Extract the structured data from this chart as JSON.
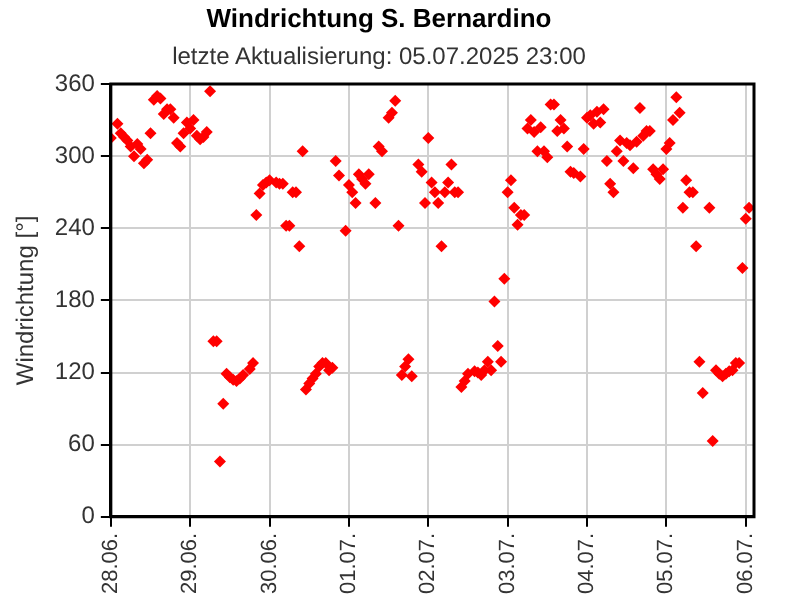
{
  "chart_data": {
    "type": "scatter",
    "title": "Windrichtung S. Bernardino",
    "subtitle": "letzte Aktualisierung: 05.07.2025 23:00",
    "ylabel": "Windrichtung [°]",
    "color": "#ff0000",
    "marker": "diamond",
    "grid": true,
    "x": [
      "2025-06-28T00:00",
      "2025-06-28T02:00",
      "2025-06-28T03:00",
      "2025-06-28T04:00",
      "2025-06-28T05:00",
      "2025-06-28T06:00",
      "2025-06-28T07:00",
      "2025-06-28T08:00",
      "2025-06-28T09:00",
      "2025-06-28T10:00",
      "2025-06-28T11:00",
      "2025-06-28T12:00",
      "2025-06-28T13:00",
      "2025-06-28T14:00",
      "2025-06-28T15:00",
      "2025-06-28T16:00",
      "2025-06-28T17:00",
      "2025-06-28T18:00",
      "2025-06-28T19:00",
      "2025-06-28T20:00",
      "2025-06-28T21:00",
      "2025-06-28T22:00",
      "2025-06-28T23:00",
      "2025-06-29T00:00",
      "2025-06-29T01:00",
      "2025-06-29T02:00",
      "2025-06-29T03:00",
      "2025-06-29T04:00",
      "2025-06-29T05:00",
      "2025-06-29T06:00",
      "2025-06-29T07:00",
      "2025-06-29T08:00",
      "2025-06-29T09:00",
      "2025-06-29T10:00",
      "2025-06-29T11:00",
      "2025-06-29T12:00",
      "2025-06-29T13:00",
      "2025-06-29T14:00",
      "2025-06-29T15:00",
      "2025-06-29T16:00",
      "2025-06-29T18:00",
      "2025-06-29T19:00",
      "2025-06-29T20:00",
      "2025-06-29T21:00",
      "2025-06-29T22:00",
      "2025-06-29T23:00",
      "2025-06-30T00:00",
      "2025-06-30T02:00",
      "2025-06-30T03:00",
      "2025-06-30T04:00",
      "2025-06-30T05:00",
      "2025-06-30T06:00",
      "2025-06-30T07:00",
      "2025-06-30T08:00",
      "2025-06-30T09:00",
      "2025-06-30T10:00",
      "2025-06-30T11:00",
      "2025-06-30T12:00",
      "2025-06-30T13:00",
      "2025-06-30T14:00",
      "2025-06-30T15:00",
      "2025-06-30T16:00",
      "2025-06-30T17:00",
      "2025-06-30T18:00",
      "2025-06-30T19:00",
      "2025-06-30T20:00",
      "2025-06-30T21:00",
      "2025-06-30T23:00",
      "2025-07-01T00:00",
      "2025-07-01T01:00",
      "2025-07-01T02:00",
      "2025-07-01T03:00",
      "2025-07-01T04:00",
      "2025-07-01T05:00",
      "2025-07-01T06:00",
      "2025-07-01T08:00",
      "2025-07-01T09:00",
      "2025-07-01T10:00",
      "2025-07-01T12:00",
      "2025-07-01T13:00",
      "2025-07-01T14:00",
      "2025-07-01T15:00",
      "2025-07-01T16:00",
      "2025-07-01T17:00",
      "2025-07-01T18:00",
      "2025-07-01T19:00",
      "2025-07-01T21:00",
      "2025-07-01T22:00",
      "2025-07-01T23:00",
      "2025-07-02T00:00",
      "2025-07-02T01:00",
      "2025-07-02T02:00",
      "2025-07-02T03:00",
      "2025-07-02T04:00",
      "2025-07-02T05:00",
      "2025-07-02T06:00",
      "2025-07-02T07:00",
      "2025-07-02T08:00",
      "2025-07-02T09:00",
      "2025-07-02T10:00",
      "2025-07-02T11:00",
      "2025-07-02T12:00",
      "2025-07-02T14:00",
      "2025-07-02T15:00",
      "2025-07-02T16:00",
      "2025-07-02T17:00",
      "2025-07-02T18:00",
      "2025-07-02T19:00",
      "2025-07-02T20:00",
      "2025-07-02T21:00",
      "2025-07-02T22:00",
      "2025-07-02T23:00",
      "2025-07-03T00:00",
      "2025-07-03T01:00",
      "2025-07-03T02:00",
      "2025-07-03T03:00",
      "2025-07-03T04:00",
      "2025-07-03T05:00",
      "2025-07-03T06:00",
      "2025-07-03T07:00",
      "2025-07-03T08:00",
      "2025-07-03T09:00",
      "2025-07-03T10:00",
      "2025-07-03T11:00",
      "2025-07-03T12:00",
      "2025-07-03T13:00",
      "2025-07-03T14:00",
      "2025-07-03T15:00",
      "2025-07-03T16:00",
      "2025-07-03T17:00",
      "2025-07-03T18:00",
      "2025-07-03T19:00",
      "2025-07-03T20:00",
      "2025-07-03T22:00",
      "2025-07-03T23:00",
      "2025-07-04T00:00",
      "2025-07-04T01:00",
      "2025-07-04T02:00",
      "2025-07-04T03:00",
      "2025-07-04T04:00",
      "2025-07-04T05:00",
      "2025-07-04T06:00",
      "2025-07-04T07:00",
      "2025-07-04T08:00",
      "2025-07-04T09:00",
      "2025-07-04T10:00",
      "2025-07-04T11:00",
      "2025-07-04T12:00",
      "2025-07-04T13:00",
      "2025-07-04T14:00",
      "2025-07-04T15:00",
      "2025-07-04T16:00",
      "2025-07-04T17:00",
      "2025-07-04T18:00",
      "2025-07-04T19:00",
      "2025-07-04T20:00",
      "2025-07-04T21:00",
      "2025-07-04T22:00",
      "2025-07-04T23:00",
      "2025-07-05T00:00",
      "2025-07-05T01:00",
      "2025-07-05T02:00",
      "2025-07-05T03:00",
      "2025-07-05T04:00",
      "2025-07-05T05:00",
      "2025-07-05T06:00",
      "2025-07-05T07:00",
      "2025-07-05T08:00",
      "2025-07-05T09:00",
      "2025-07-05T10:00",
      "2025-07-05T11:00",
      "2025-07-05T13:00",
      "2025-07-05T14:00",
      "2025-07-05T15:00",
      "2025-07-05T16:00",
      "2025-07-05T17:00",
      "2025-07-05T18:00",
      "2025-07-05T19:00",
      "2025-07-05T20:00",
      "2025-07-05T21:00",
      "2025-07-05T22:00",
      "2025-07-05T23:00",
      "2025-07-06T00:00",
      "2025-07-06T01:00"
    ],
    "values": [
      315,
      327,
      319,
      316,
      313,
      308,
      300,
      310,
      306,
      294,
      297,
      319,
      347,
      350,
      348,
      335,
      339,
      339,
      332,
      311,
      308,
      319,
      328,
      323,
      330,
      317,
      314,
      316,
      320,
      354,
      146,
      146,
      46,
      94,
      119,
      116,
      114,
      113,
      115,
      118,
      123,
      128,
      251,
      269,
      276,
      278,
      280,
      278,
      277,
      277,
      242,
      242,
      270,
      270,
      225,
      304,
      106,
      111,
      115,
      119,
      125,
      128,
      128,
      122,
      124,
      296,
      284,
      238,
      276,
      270,
      261,
      285,
      281,
      277,
      285,
      261,
      308,
      304,
      332,
      336,
      346,
      242,
      118,
      125,
      131,
      117,
      293,
      287,
      261,
      315,
      278,
      270,
      261,
      225,
      270,
      278,
      293,
      270,
      270,
      108,
      113,
      119,
      121,
      120,
      118,
      122,
      129,
      122,
      179,
      142,
      129,
      198,
      270,
      280,
      257,
      243,
      251,
      251,
      323,
      330,
      320,
      304,
      324,
      304,
      299,
      343,
      343,
      321,
      330,
      323,
      308,
      287,
      286,
      283,
      306,
      332,
      334,
      327,
      337,
      328,
      339,
      296,
      277,
      270,
      304,
      313,
      296,
      311,
      309,
      290,
      312,
      340,
      317,
      321,
      321,
      289,
      285,
      281,
      289,
      306,
      311,
      330,
      349,
      336,
      257,
      280,
      270,
      270,
      225,
      129,
      103,
      257,
      63,
      122,
      119,
      117,
      119,
      121,
      122,
      128,
      128,
      207,
      248,
      257
    ],
    "xlim": [
      "2025-06-28T00:00",
      "2025-07-06T02:30"
    ],
    "xticks": [
      {
        "value": "2025-06-28",
        "label": "28.06."
      },
      {
        "value": "2025-06-29",
        "label": "29.06."
      },
      {
        "value": "2025-06-30",
        "label": "30.06."
      },
      {
        "value": "2025-07-01",
        "label": "01.07."
      },
      {
        "value": "2025-07-02",
        "label": "02.07."
      },
      {
        "value": "2025-07-03",
        "label": "03.07."
      },
      {
        "value": "2025-07-04",
        "label": "04.07."
      },
      {
        "value": "2025-07-05",
        "label": "05.07."
      },
      {
        "value": "2025-07-06",
        "label": "06.07."
      }
    ],
    "ylim": [
      0,
      360
    ],
    "yticks": [
      0,
      60,
      120,
      180,
      240,
      300,
      360
    ]
  }
}
